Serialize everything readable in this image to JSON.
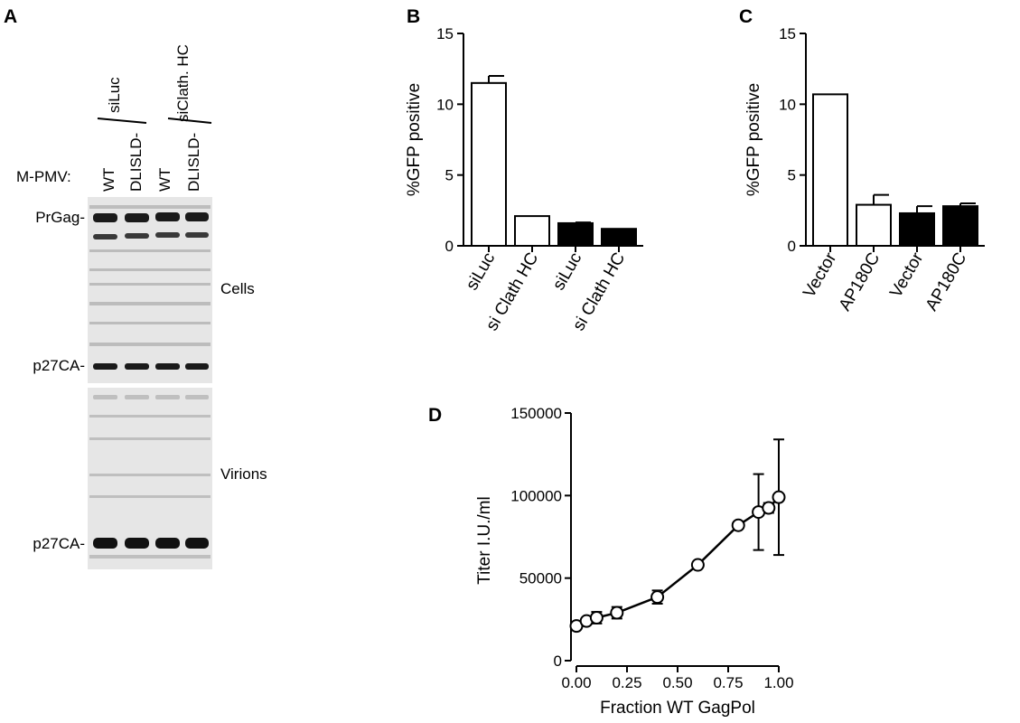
{
  "panels": {
    "A": {
      "letter": "A",
      "group_labels": [
        "siLuc",
        "siClath. HC"
      ],
      "row_label": "M-PMV:",
      "lanes": [
        "WT",
        "DLISLD-",
        "WT",
        "DLISLD-"
      ],
      "bands": {
        "prgag": "PrGag-",
        "p27_cells": "p27CA-",
        "p27_virions": "p27CA-"
      },
      "blot_labels": {
        "cells": "Cells",
        "virions": "Virions"
      }
    },
    "B": {
      "letter": "B"
    },
    "C": {
      "letter": "C"
    },
    "D": {
      "letter": "D"
    }
  },
  "colors": {
    "open_bar": "#ffffff",
    "filled_bar": "#000000",
    "blot_bg": "#e6e6e6",
    "band": "#1a1a1a"
  },
  "chart_data": [
    {
      "type": "bar",
      "panel": "B",
      "categories": [
        "siLuc",
        "si Clath HC",
        "siLuc",
        "si Clath HC"
      ],
      "values": [
        11.5,
        2.1,
        1.6,
        1.2
      ],
      "errors": [
        0.5,
        0,
        0.05,
        0
      ],
      "fill": [
        "open",
        "open",
        "filled",
        "filled"
      ],
      "ylabel": "%GFP positive",
      "ylim": [
        0,
        15
      ],
      "yticks": [
        0,
        5,
        10,
        15
      ]
    },
    {
      "type": "bar",
      "panel": "C",
      "categories": [
        "Vector",
        "AP180C",
        "Vector",
        "AP180C"
      ],
      "values": [
        10.7,
        2.9,
        2.3,
        2.8
      ],
      "errors": [
        0,
        0.7,
        0.5,
        0.2
      ],
      "fill": [
        "open",
        "open",
        "filled",
        "filled"
      ],
      "ylabel": "%GFP positive",
      "ylim": [
        0,
        15
      ],
      "yticks": [
        0,
        5,
        10,
        15
      ]
    },
    {
      "type": "line",
      "panel": "D",
      "x": [
        0.0,
        0.05,
        0.1,
        0.2,
        0.4,
        0.6,
        0.8,
        0.9,
        0.95,
        1.0
      ],
      "y": [
        21000,
        24000,
        26000,
        29000,
        38500,
        58000,
        82000,
        90000,
        92500,
        99000
      ],
      "errors": [
        1500,
        1500,
        3500,
        3500,
        4000,
        0,
        0,
        23000,
        3000,
        35000
      ],
      "xlabel": "Fraction WT GagPol",
      "ylabel": "Titer I.U./ml",
      "xlim": [
        0,
        1
      ],
      "ylim": [
        0,
        150000
      ],
      "xticks": [
        "0.00",
        "0.25",
        "0.50",
        "0.75",
        "1.00"
      ],
      "yticks": [
        "0",
        "50000",
        "100000",
        "150000"
      ],
      "marker": "open-circle"
    }
  ]
}
